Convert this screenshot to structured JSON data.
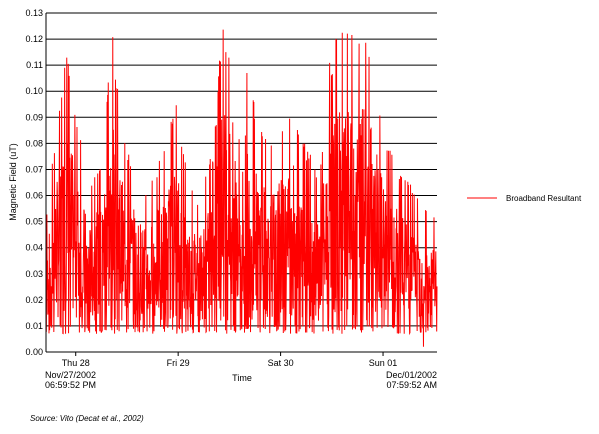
{
  "chart_data": {
    "type": "line",
    "title": "",
    "xlabel": "Time",
    "ylabel": "Magnetic Field (uT)",
    "ylim": [
      0,
      0.13
    ],
    "y_ticks": [
      "0.00",
      "0.01",
      "0.02",
      "0.03",
      "0.04",
      "0.05",
      "0.06",
      "0.07",
      "0.08",
      "0.09",
      "0.10",
      "0.11",
      "0.12",
      "0.13"
    ],
    "x_ticks": [
      {
        "label": "Thu 28",
        "t": 0.076
      },
      {
        "label": "Fri 29",
        "t": 0.338
      },
      {
        "label": "Sat 30",
        "t": 0.6
      },
      {
        "label": "Sun 01",
        "t": 0.862
      }
    ],
    "x_start": {
      "line1": "Nov/27/2002",
      "line2": "06:59:52 PM"
    },
    "x_end": {
      "line1": "Dec/01/2002",
      "line2": "07:59:52 AM"
    },
    "grid": "horizontal",
    "legend": {
      "position": "right",
      "entries": [
        "Broadband Resultant"
      ]
    },
    "series": [
      {
        "name": "Broadband Resultant",
        "color": "#ff0000",
        "envelope": [
          {
            "t": 0.0,
            "hi": 0.05
          },
          {
            "t": 0.02,
            "hi": 0.078
          },
          {
            "t": 0.05,
            "hi": 0.118
          },
          {
            "t": 0.08,
            "hi": 0.09
          },
          {
            "t": 0.11,
            "hi": 0.065
          },
          {
            "t": 0.14,
            "hi": 0.075
          },
          {
            "t": 0.17,
            "hi": 0.122
          },
          {
            "t": 0.2,
            "hi": 0.082
          },
          {
            "t": 0.23,
            "hi": 0.072
          },
          {
            "t": 0.26,
            "hi": 0.062
          },
          {
            "t": 0.3,
            "hi": 0.078
          },
          {
            "t": 0.33,
            "hi": 0.098
          },
          {
            "t": 0.36,
            "hi": 0.07
          },
          {
            "t": 0.39,
            "hi": 0.06
          },
          {
            "t": 0.43,
            "hi": 0.08
          },
          {
            "t": 0.45,
            "hi": 0.128
          },
          {
            "t": 0.48,
            "hi": 0.118
          },
          {
            "t": 0.51,
            "hi": 0.112
          },
          {
            "t": 0.54,
            "hi": 0.092
          },
          {
            "t": 0.57,
            "hi": 0.082
          },
          {
            "t": 0.6,
            "hi": 0.088
          },
          {
            "t": 0.63,
            "hi": 0.098
          },
          {
            "t": 0.66,
            "hi": 0.082
          },
          {
            "t": 0.7,
            "hi": 0.068
          },
          {
            "t": 0.72,
            "hi": 0.108
          },
          {
            "t": 0.75,
            "hi": 0.126
          },
          {
            "t": 0.78,
            "hi": 0.122
          },
          {
            "t": 0.82,
            "hi": 0.128
          },
          {
            "t": 0.85,
            "hi": 0.1
          },
          {
            "t": 0.88,
            "hi": 0.078
          },
          {
            "t": 0.92,
            "hi": 0.068
          },
          {
            "t": 0.96,
            "hi": 0.058
          },
          {
            "t": 1.0,
            "hi": 0.052
          }
        ],
        "min_value": 0.002
      }
    ]
  },
  "source_note": "Source: Vito (Decat et al., 2002)"
}
